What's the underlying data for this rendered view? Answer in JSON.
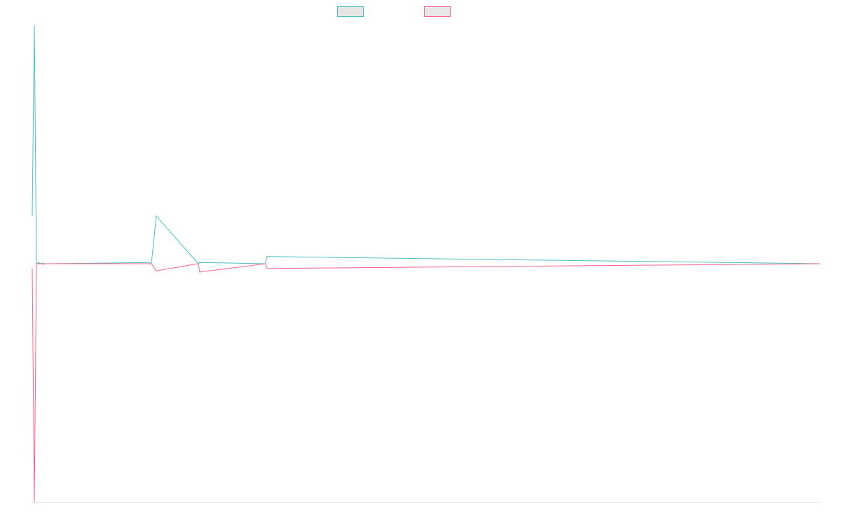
{
  "chart_data": {
    "type": "line",
    "title": "",
    "xlabel": "",
    "ylabel": "",
    "legend_position": "top-center",
    "grid": false,
    "ylim": [
      -100,
      100
    ],
    "series": [
      {
        "name": "",
        "color": "#4bc0c0",
        "x": [
          0,
          1,
          2,
          3,
          4,
          5,
          6,
          7,
          8,
          9,
          10,
          11,
          12,
          13,
          14,
          15
        ],
        "y": [
          20,
          100,
          0,
          0.5,
          0,
          0.3,
          0,
          0,
          0,
          0.5,
          0,
          20,
          0,
          0.5,
          0,
          3
        ]
      },
      {
        "name": "",
        "color": "#ff6384",
        "x": [
          0,
          1,
          2,
          3,
          4,
          5,
          6,
          7,
          8,
          9,
          10,
          11,
          12,
          13,
          14,
          15
        ],
        "y": [
          -2,
          -100,
          0,
          0,
          0,
          -0.3,
          0,
          0,
          0,
          0,
          0,
          -3,
          0,
          -3.5,
          0,
          -2
        ]
      }
    ]
  }
}
